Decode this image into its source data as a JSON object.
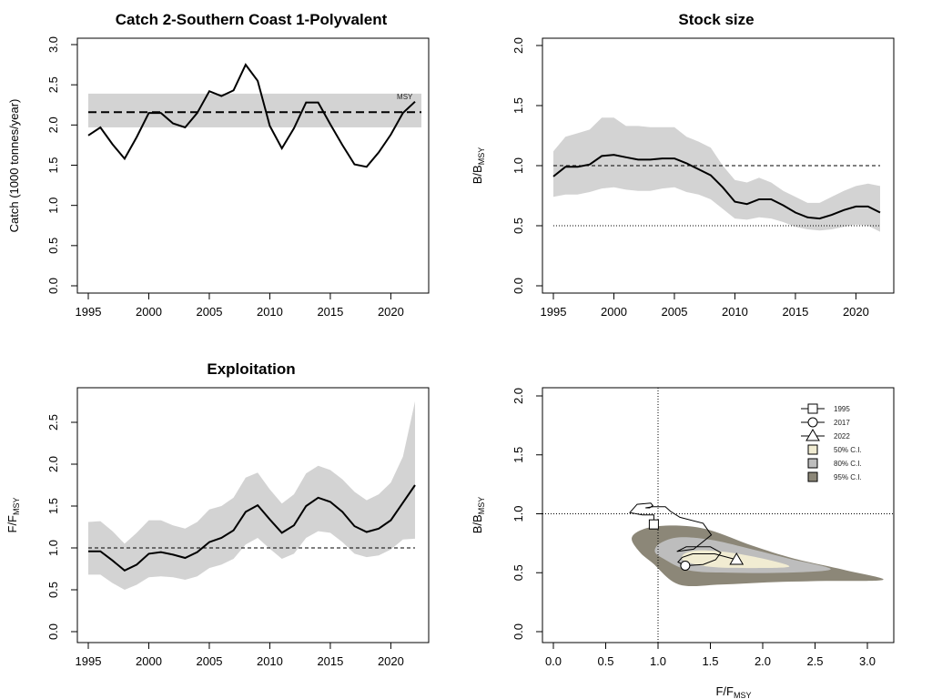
{
  "chart_data": [
    {
      "id": "catch",
      "type": "line",
      "title": "Catch 2-Southern Coast 1-Polyvalent",
      "ylabel": "Catch (1000 tonnes/year)",
      "xlim": [
        1995,
        2022
      ],
      "ylim": [
        0,
        3.0
      ],
      "xticks": [
        "1995",
        "2000",
        "2005",
        "2010",
        "2015",
        "2020"
      ],
      "yticks": [
        "0.0",
        "0.5",
        "1.0",
        "1.5",
        "2.0",
        "2.5",
        "3.0"
      ],
      "x": [
        1995,
        1996,
        1997,
        1998,
        1999,
        2000,
        2001,
        2002,
        2003,
        2004,
        2005,
        2006,
        2007,
        2008,
        2009,
        2010,
        2011,
        2012,
        2013,
        2014,
        2015,
        2016,
        2017,
        2018,
        2019,
        2020,
        2021,
        2022
      ],
      "series": [
        {
          "values": [
            1.87,
            1.97,
            1.76,
            1.58,
            1.85,
            2.15,
            2.15,
            2.02,
            1.97,
            2.15,
            2.42,
            2.36,
            2.43,
            2.75,
            2.55,
            1.99,
            1.71,
            1.96,
            2.28,
            2.28,
            2.01,
            1.75,
            1.51,
            1.48,
            1.66,
            1.88,
            2.15,
            2.29
          ]
        }
      ],
      "msy": 2.16,
      "msy_band": [
        1.97,
        2.39
      ],
      "msy_label": "MSY"
    },
    {
      "id": "stock",
      "type": "line",
      "title": "Stock size",
      "ylabel": "B/B",
      "ylabel_sub": "MSY",
      "xlim": [
        1995,
        2022
      ],
      "ylim": [
        0,
        2.0
      ],
      "xticks": [
        "1995",
        "2000",
        "2005",
        "2010",
        "2015",
        "2020"
      ],
      "yticks": [
        "0.0",
        "0.5",
        "1.0",
        "1.5",
        "2.0"
      ],
      "x": [
        1995,
        1996,
        1997,
        1998,
        1999,
        2000,
        2001,
        2002,
        2003,
        2004,
        2005,
        2006,
        2007,
        2008,
        2009,
        2010,
        2011,
        2012,
        2013,
        2014,
        2015,
        2016,
        2017,
        2018,
        2019,
        2020,
        2021,
        2022
      ],
      "series": [
        {
          "values": [
            0.91,
            0.99,
            0.99,
            1.01,
            1.08,
            1.09,
            1.07,
            1.05,
            1.05,
            1.06,
            1.06,
            1.02,
            0.97,
            0.92,
            0.82,
            0.7,
            0.68,
            0.72,
            0.72,
            0.67,
            0.61,
            0.57,
            0.56,
            0.59,
            0.63,
            0.66,
            0.66,
            0.61
          ]
        }
      ],
      "ci_upper": [
        1.12,
        1.24,
        1.27,
        1.3,
        1.4,
        1.4,
        1.33,
        1.33,
        1.32,
        1.32,
        1.32,
        1.24,
        1.2,
        1.15,
        1.0,
        0.88,
        0.86,
        0.9,
        0.86,
        0.79,
        0.74,
        0.69,
        0.69,
        0.74,
        0.79,
        0.83,
        0.85,
        0.83
      ],
      "ci_lower": [
        0.74,
        0.76,
        0.76,
        0.78,
        0.81,
        0.82,
        0.8,
        0.79,
        0.79,
        0.81,
        0.82,
        0.78,
        0.76,
        0.72,
        0.64,
        0.56,
        0.55,
        0.57,
        0.56,
        0.53,
        0.49,
        0.47,
        0.46,
        0.47,
        0.49,
        0.51,
        0.5,
        0.45
      ],
      "ref_dashed": 1.0,
      "ref_dotted": 0.5
    },
    {
      "id": "exploitation",
      "type": "line",
      "title": "Exploitation",
      "ylabel": "F/F",
      "ylabel_sub": "MSY",
      "xlim": [
        1995,
        2022
      ],
      "ylim": [
        0,
        2.7
      ],
      "xticks": [
        "1995",
        "2000",
        "2005",
        "2010",
        "2015",
        "2020"
      ],
      "yticks": [
        "0.0",
        "0.5",
        "1.0",
        "1.5",
        "2.0",
        "2.5"
      ],
      "x": [
        1995,
        1996,
        1997,
        1998,
        1999,
        2000,
        2001,
        2002,
        2003,
        2004,
        2005,
        2006,
        2007,
        2008,
        2009,
        2010,
        2011,
        2012,
        2013,
        2014,
        2015,
        2016,
        2017,
        2018,
        2019,
        2020,
        2021,
        2022
      ],
      "series": [
        {
          "values": [
            0.96,
            0.96,
            0.85,
            0.73,
            0.8,
            0.93,
            0.95,
            0.92,
            0.88,
            0.95,
            1.07,
            1.12,
            1.21,
            1.43,
            1.51,
            1.34,
            1.18,
            1.27,
            1.5,
            1.6,
            1.55,
            1.43,
            1.26,
            1.19,
            1.23,
            1.33,
            1.54,
            1.75
          ]
        }
      ],
      "ci_upper": [
        1.31,
        1.32,
        1.2,
        1.05,
        1.18,
        1.33,
        1.33,
        1.27,
        1.23,
        1.31,
        1.46,
        1.5,
        1.6,
        1.84,
        1.9,
        1.7,
        1.53,
        1.64,
        1.89,
        1.98,
        1.93,
        1.82,
        1.67,
        1.57,
        1.64,
        1.78,
        2.09,
        2.75
      ],
      "ci_lower": [
        0.68,
        0.68,
        0.58,
        0.5,
        0.56,
        0.65,
        0.66,
        0.65,
        0.62,
        0.66,
        0.76,
        0.8,
        0.87,
        1.04,
        1.12,
        0.99,
        0.87,
        0.93,
        1.12,
        1.2,
        1.18,
        1.07,
        0.93,
        0.89,
        0.91,
        0.98,
        1.1,
        1.11
      ],
      "ref_dashed": 1.0
    },
    {
      "id": "kobe",
      "type": "scatter",
      "xlabel": "F/F",
      "xlabel_sub": "MSY",
      "ylabel": "B/B",
      "ylabel_sub": "MSY",
      "xlim": [
        0,
        3.2
      ],
      "ylim": [
        0,
        2.0
      ],
      "xticks": [
        "0.0",
        "0.5",
        "1.0",
        "1.5",
        "2.0",
        "2.5",
        "3.0"
      ],
      "yticks": [
        "0.0",
        "0.5",
        "1.0",
        "1.5",
        "2.0"
      ],
      "ref_v": 1.0,
      "ref_h": 1.0,
      "trajectory": {
        "F": [
          0.96,
          0.96,
          0.85,
          0.73,
          0.8,
          0.93,
          0.95,
          0.92,
          0.88,
          0.95,
          1.07,
          1.12,
          1.21,
          1.43,
          1.51,
          1.34,
          1.18,
          1.27,
          1.5,
          1.6,
          1.55,
          1.43,
          1.26,
          1.19,
          1.23,
          1.33,
          1.54,
          1.75
        ],
        "B": [
          0.91,
          0.99,
          0.99,
          1.01,
          1.08,
          1.09,
          1.07,
          1.05,
          1.05,
          1.06,
          1.06,
          1.02,
          0.97,
          0.92,
          0.82,
          0.7,
          0.68,
          0.72,
          0.72,
          0.67,
          0.61,
          0.57,
          0.56,
          0.59,
          0.63,
          0.66,
          0.66,
          0.61
        ]
      },
      "markers": [
        {
          "label": "1995",
          "shape": "square",
          "F": 0.96,
          "B": 0.91
        },
        {
          "label": "2017",
          "shape": "circle",
          "F": 1.26,
          "B": 0.56
        },
        {
          "label": "2022",
          "shape": "triangle",
          "F": 1.75,
          "B": 0.61
        }
      ],
      "ci_legend": [
        {
          "label": "50% C.I.",
          "color": "#f1ecd2"
        },
        {
          "label": "80% C.I.",
          "color": "#bdbdbd"
        },
        {
          "label": "95% C.I.",
          "color": "#8c8778"
        }
      ],
      "ellipses": [
        {
          "level": "95%",
          "color": "#8c8778",
          "points": [
            [
              0.95,
              0.58
            ],
            [
              1.2,
              0.4
            ],
            [
              1.6,
              0.4
            ],
            [
              2.1,
              0.42
            ],
            [
              2.6,
              0.43
            ],
            [
              3.15,
              0.44
            ],
            [
              2.8,
              0.52
            ],
            [
              2.3,
              0.62
            ],
            [
              1.9,
              0.73
            ],
            [
              1.5,
              0.86
            ],
            [
              1.2,
              0.9
            ],
            [
              0.9,
              0.88
            ],
            [
              0.75,
              0.8
            ],
            [
              0.82,
              0.68
            ]
          ]
        },
        {
          "level": "80%",
          "color": "#bdbdbd",
          "points": [
            [
              1.05,
              0.62
            ],
            [
              1.3,
              0.52
            ],
            [
              1.7,
              0.5
            ],
            [
              2.2,
              0.5
            ],
            [
              2.65,
              0.53
            ],
            [
              2.25,
              0.62
            ],
            [
              1.85,
              0.71
            ],
            [
              1.5,
              0.78
            ],
            [
              1.2,
              0.8
            ],
            [
              1.02,
              0.75
            ],
            [
              0.97,
              0.68
            ]
          ]
        },
        {
          "level": "50%",
          "color": "#f1ecd2",
          "points": [
            [
              1.25,
              0.6
            ],
            [
              1.5,
              0.55
            ],
            [
              1.85,
              0.54
            ],
            [
              2.25,
              0.55
            ],
            [
              2.05,
              0.61
            ],
            [
              1.7,
              0.67
            ],
            [
              1.4,
              0.69
            ],
            [
              1.25,
              0.66
            ]
          ]
        }
      ]
    }
  ]
}
